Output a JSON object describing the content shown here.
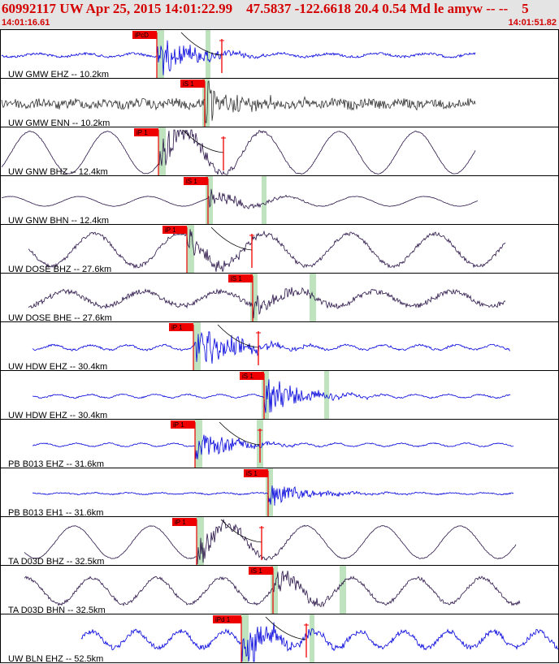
{
  "header": {
    "title": "60992117 UW Apr 25, 2015 14:01:22.99    47.5837 -122.6618 20.4 0.54 Md le amyw -- --    5",
    "start_time": "14:01:16.61",
    "end_time": "14:01:51.82"
  },
  "colors": {
    "background": "#ffffff",
    "header_bg": "#e4e4e4",
    "header_text": "#d40000",
    "pick_box": "#ee0000",
    "pick_window": "#bfe3bf",
    "trace_blue": "#0000dd",
    "trace_gray": "#333333",
    "trace_purple": "#2a1448",
    "duration_mark": "#ee0000"
  },
  "chart_data": {
    "type": "line",
    "x_axis": {
      "start": "14:01:16.61",
      "end": "14:01:51.82"
    },
    "traces": [
      {
        "label": "UW GMW EHZ -- 10.2km",
        "pick": "iPcD",
        "color": "trace_blue"
      },
      {
        "label": "UW GMW ENN -- 10.2km",
        "pick": "iS 1",
        "color": "trace_gray"
      },
      {
        "label": "UW GNW BHZ -- 12.4km",
        "pick": "iP 1",
        "color": "trace_purple"
      },
      {
        "label": "UW GNW BHN -- 12.4km",
        "pick": "iS 1",
        "color": "trace_purple"
      },
      {
        "label": "UW DOSE BHZ -- 27.6km",
        "pick": "iP 1",
        "color": "trace_purple"
      },
      {
        "label": "UW DOSE BHE -- 27.6km",
        "pick": "iS 1",
        "color": "trace_purple"
      },
      {
        "label": "UW HDW EHZ -- 30.4km",
        "pick": "iP 1",
        "color": "trace_blue"
      },
      {
        "label": "UW HDW EHZ -- 30.4km",
        "pick": "iS 1",
        "color": "trace_blue"
      },
      {
        "label": "PB B013 EHZ -- 31.6km",
        "pick": "iP 1",
        "color": "trace_blue"
      },
      {
        "label": "PB B013 EH1 -- 31.6km",
        "pick": "iS 1",
        "color": "trace_blue"
      },
      {
        "label": "TA D03D BHZ -- 32.5km",
        "pick": "iP 1",
        "color": "trace_purple"
      },
      {
        "label": "TA D03D BHN -- 32.5km",
        "pick": "iS 1",
        "color": "trace_purple"
      },
      {
        "label": "UW BLN EHZ -- 52.5km",
        "pick": "iPd 1",
        "color": "trace_blue"
      }
    ]
  }
}
